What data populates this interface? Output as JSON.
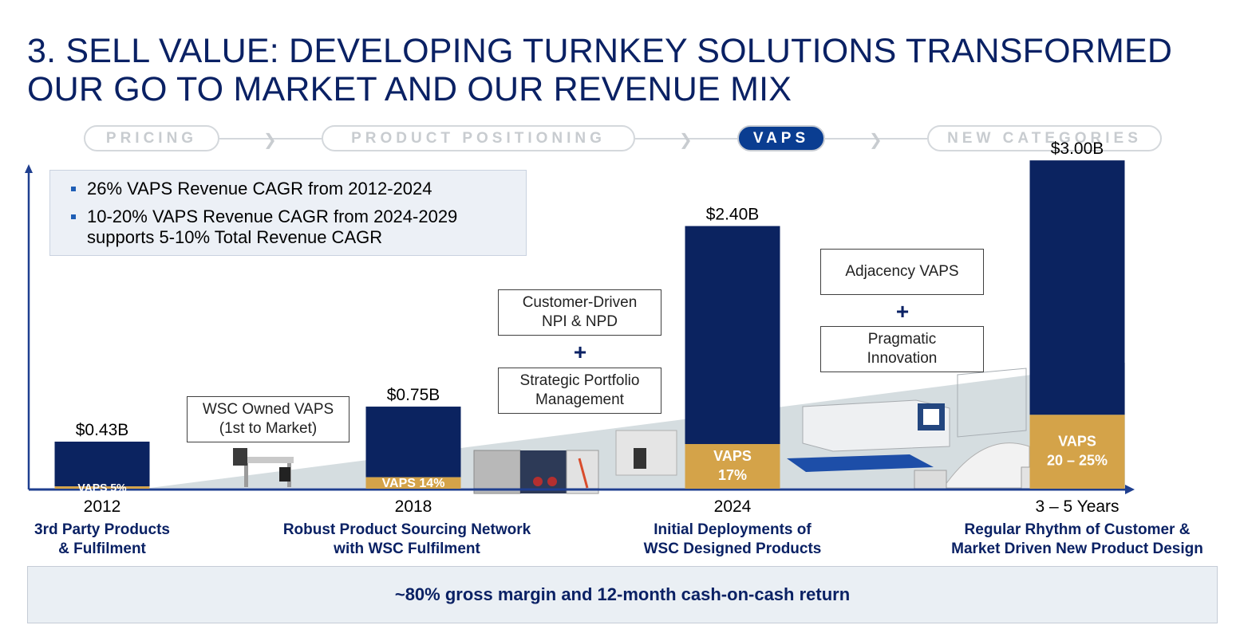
{
  "title": {
    "line1": "3. SELL VALUE: DEVELOPING TURNKEY SOLUTIONS TRANSFORMED",
    "line2": "OUR GO TO MARKET AND OUR REVENUE MIX"
  },
  "stepper": {
    "steps": [
      {
        "label": "PRICING",
        "active": false
      },
      {
        "label": "PRODUCT POSITIONING",
        "active": false
      },
      {
        "label": "VAPS",
        "active": true
      },
      {
        "label": "NEW CATEGORIES",
        "active": false
      }
    ]
  },
  "highlights": {
    "bullets": [
      "26% VAPS Revenue CAGR from 2012-2024",
      "10-20% VAPS Revenue CAGR from 2024-2029",
      "supports 5-10% Total Revenue CAGR"
    ]
  },
  "callouts": {
    "owned": {
      "line1": "WSC Owned VAPS",
      "line2": "(1st to Market)"
    },
    "customer": {
      "line1": "Customer-Driven",
      "line2": "NPI & NPD"
    },
    "strategic": {
      "line1": "Strategic Portfolio",
      "line2": "Management"
    },
    "adjacency": {
      "line1": "Adjacency VAPS"
    },
    "pragmatic": {
      "line1": "Pragmatic",
      "line2": "Innovation"
    },
    "plus": "+"
  },
  "chart_data": {
    "type": "bar",
    "stacked": true,
    "categories": [
      "2012",
      "2018",
      "2024",
      "3 – 5 Years"
    ],
    "category_descriptions": [
      [
        "3rd Party Products",
        "& Fulfilment"
      ],
      [
        "Robust Product Sourcing Network",
        "with WSC Fulfilment"
      ],
      [
        "Initial Deployments of",
        "WSC Designed Products"
      ],
      [
        "Regular Rhythm of Customer &",
        "Market Driven New Product Design"
      ]
    ],
    "totals": [
      0.43,
      0.75,
      2.4,
      3.0
    ],
    "total_labels": [
      "$0.43B",
      "$0.75B",
      "$2.40B",
      "$3.00B"
    ],
    "vaps_share_pct": [
      5,
      14,
      17,
      22.5
    ],
    "vaps_labels": [
      [
        "VAPS 5%"
      ],
      [
        "VAPS 14%"
      ],
      [
        "VAPS",
        "17%"
      ],
      [
        "VAPS",
        "20 – 25%"
      ]
    ],
    "ylim": [
      0,
      3.3
    ],
    "colors": {
      "total": "#0b2360",
      "vaps": "#d4a349",
      "axis": "#1f3f8f"
    }
  },
  "footer": {
    "text": "~80% gross margin and 12-month cash-on-cash return"
  }
}
